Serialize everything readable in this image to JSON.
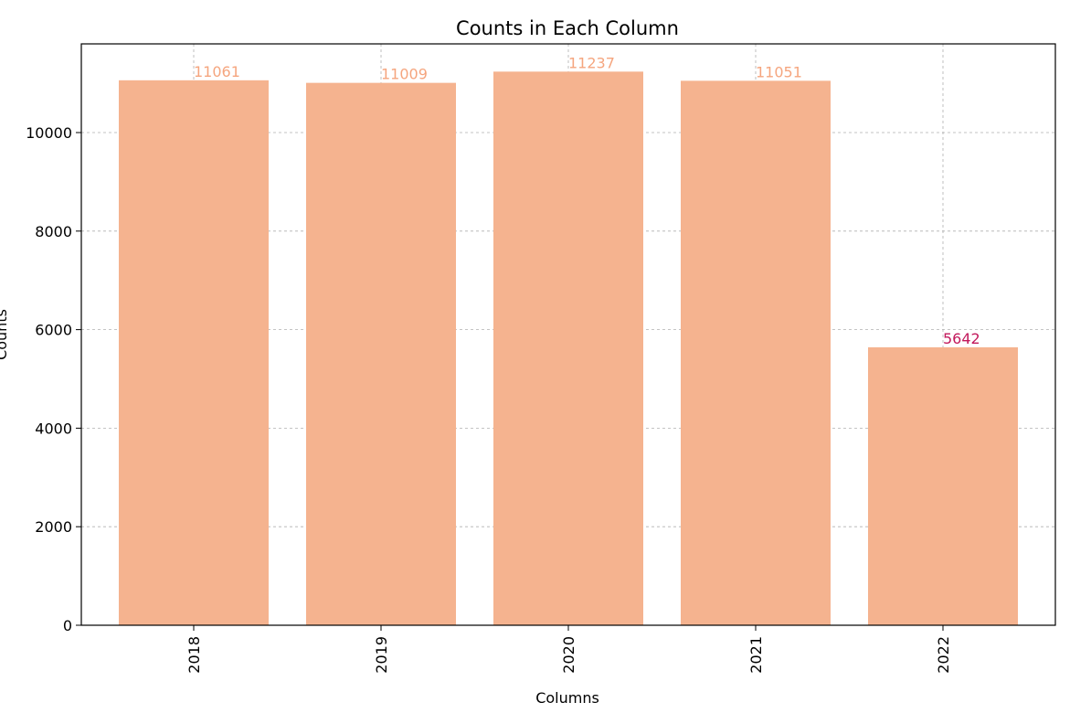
{
  "chart_data": {
    "type": "bar",
    "title": "Counts in Each Column",
    "xlabel": "Columns",
    "ylabel": "Counts",
    "categories": [
      "2018",
      "2019",
      "2020",
      "2021",
      "2022"
    ],
    "values": [
      11061,
      11009,
      11237,
      11051,
      5642
    ],
    "ylim": [
      0,
      11800
    ],
    "yticks": [
      0,
      2000,
      4000,
      6000,
      8000,
      10000
    ],
    "grid": true,
    "x_tick_rotation": "vertical",
    "colors": {
      "bar": "#f5b38f",
      "label_default": "#f5a57e",
      "label_highlight": "#c2185b"
    },
    "highlight_indices": [
      4
    ]
  }
}
